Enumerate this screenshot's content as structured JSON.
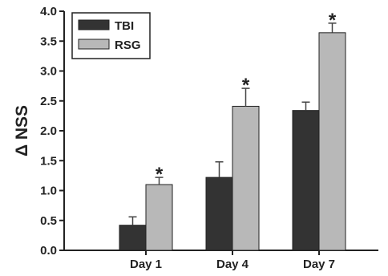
{
  "chart_data": {
    "type": "bar",
    "title": "",
    "xlabel": "",
    "ylabel": "Δ NSS",
    "ylim": [
      0,
      4.0
    ],
    "yticks": [
      "0.0",
      "0.5",
      "1.0",
      "1.5",
      "2.0",
      "2.5",
      "3.0",
      "3.5",
      "4.0"
    ],
    "categories": [
      "Day 1",
      "Day 4",
      "Day 7"
    ],
    "series": [
      {
        "name": "TBI",
        "color": "#333333",
        "values": [
          0.42,
          1.22,
          2.34
        ],
        "errors": [
          0.14,
          0.26,
          0.14
        ]
      },
      {
        "name": "RSG",
        "color": "#b8b8b8",
        "values": [
          1.1,
          2.41,
          3.64
        ],
        "errors": [
          0.12,
          0.3,
          0.16
        ]
      }
    ],
    "annotations": [
      {
        "text": "*",
        "series": "RSG",
        "category": "Day 1"
      },
      {
        "text": "*",
        "series": "RSG",
        "category": "Day 4"
      },
      {
        "text": "*",
        "series": "RSG",
        "category": "Day 7"
      }
    ],
    "legend": "top-left",
    "grid": false
  }
}
